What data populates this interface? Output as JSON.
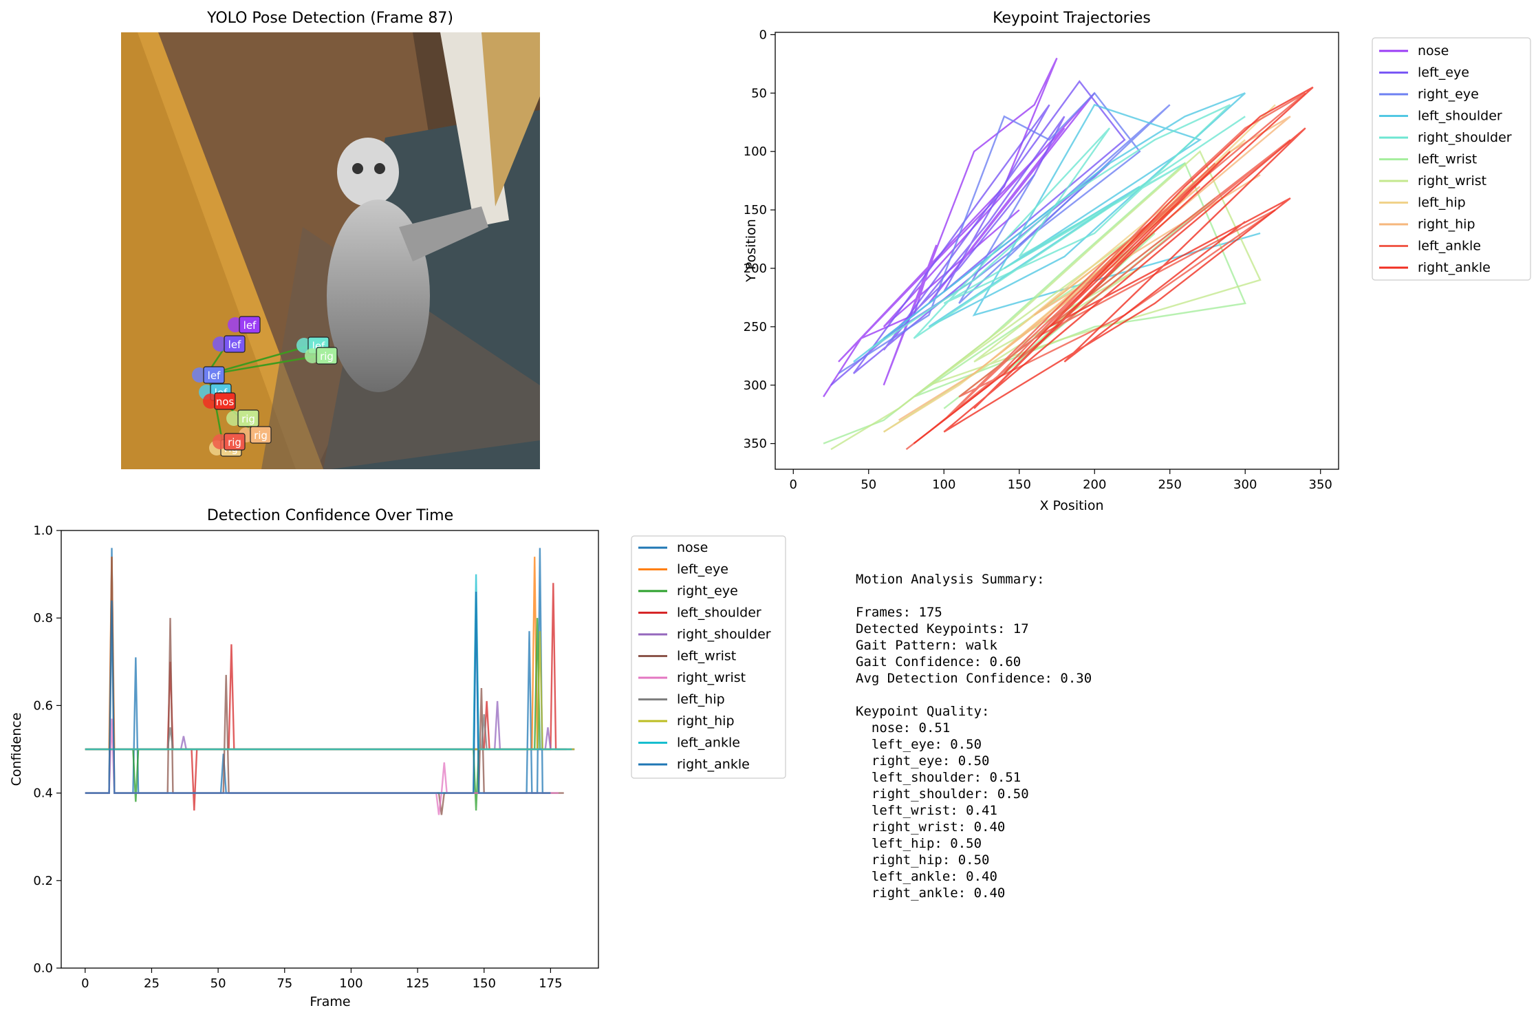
{
  "colors": {
    "keypoints": [
      "#9b3df5",
      "#7a58f5",
      "#6d80f2",
      "#52c8e3",
      "#6ee6d2",
      "#a6ee9e",
      "#c4e88e",
      "#f0d28a",
      "#f6b77c",
      "#f05a4a",
      "#f02f22"
    ],
    "confidence": [
      "#1f77b4",
      "#ff7f0e",
      "#2ca02c",
      "#d62728",
      "#9467bd",
      "#8c564b",
      "#e377c2",
      "#7f7f7f",
      "#bcbd22",
      "#17becf",
      "#1f77b4"
    ],
    "photo_wall": "#c9a23a",
    "photo_floor": "#8a5a35"
  },
  "chart_data": [
    {
      "id": "pose",
      "type": "image",
      "title": "YOLO Pose Detection (Frame 87)",
      "marker_labels": [
        "lef",
        "lef",
        "lef",
        "lef",
        "lef",
        "rig",
        "rig",
        "rig",
        "rig",
        "rig",
        "nos"
      ]
    },
    {
      "id": "trajectories",
      "type": "line",
      "title": "Keypoint Trajectories",
      "xlabel": "X Position",
      "ylabel": "Y Position",
      "xlim": [
        -12,
        362
      ],
      "ylim": [
        372,
        -2
      ],
      "y_inverted": true,
      "xticks": [
        0,
        50,
        100,
        150,
        200,
        250,
        300,
        350
      ],
      "yticks": [
        0,
        50,
        100,
        150,
        200,
        250,
        300,
        350
      ],
      "legend_position": "outside-right",
      "series": [
        {
          "name": "nose",
          "x": [
            20,
            45,
            80,
            95,
            60,
            120,
            160,
            175,
            140,
            30,
            180,
            90,
            200,
            60,
            150
          ],
          "y": [
            310,
            260,
            240,
            180,
            300,
            100,
            60,
            20,
            130,
            280,
            80,
            230,
            50,
            250,
            150
          ]
        },
        {
          "name": "left_eye",
          "x": [
            25,
            70,
            110,
            160,
            180,
            130,
            60,
            190,
            220,
            100,
            170,
            40,
            210,
            150
          ],
          "y": [
            300,
            250,
            200,
            120,
            70,
            160,
            270,
            40,
            90,
            220,
            60,
            290,
            110,
            180
          ]
        },
        {
          "name": "right_eye",
          "x": [
            30,
            90,
            140,
            170,
            200,
            230,
            120,
            60,
            180,
            250,
            110,
            160
          ],
          "y": [
            290,
            240,
            70,
            90,
            50,
            100,
            210,
            260,
            140,
            60,
            230,
            120
          ]
        },
        {
          "name": "left_shoulder",
          "x": [
            40,
            100,
            160,
            210,
            260,
            300,
            180,
            90,
            230,
            140,
            270,
            200,
            120,
            310
          ],
          "y": [
            280,
            220,
            160,
            110,
            70,
            50,
            190,
            250,
            130,
            200,
            90,
            60,
            240,
            170
          ]
        },
        {
          "name": "right_shoulder",
          "x": [
            50,
            120,
            180,
            240,
            290,
            200,
            100,
            260,
            150,
            210,
            80,
            300
          ],
          "y": [
            270,
            210,
            140,
            90,
            60,
            170,
            230,
            110,
            190,
            80,
            260,
            70
          ]
        },
        {
          "name": "left_wrist",
          "x": [
            20,
            60,
            130,
            190,
            260,
            300,
            200,
            80,
            240,
            140,
            280,
            100
          ],
          "y": [
            350,
            330,
            260,
            190,
            110,
            230,
            250,
            310,
            170,
            290,
            140,
            320
          ]
        },
        {
          "name": "right_wrist",
          "x": [
            25,
            70,
            140,
            200,
            270,
            310,
            180,
            90,
            250,
            120,
            230,
            60
          ],
          "y": [
            355,
            320,
            250,
            180,
            100,
            210,
            260,
            300,
            150,
            280,
            200,
            340
          ]
        },
        {
          "name": "left_hip",
          "x": [
            60,
            110,
            170,
            230,
            280,
            320,
            200,
            130,
            260,
            150,
            300
          ],
          "y": [
            340,
            300,
            240,
            170,
            110,
            60,
            210,
            280,
            140,
            250,
            90
          ]
        },
        {
          "name": "right_hip",
          "x": [
            70,
            120,
            180,
            240,
            290,
            330,
            210,
            140,
            270,
            160,
            310
          ],
          "y": [
            330,
            290,
            230,
            160,
            100,
            70,
            200,
            270,
            130,
            240,
            120
          ]
        },
        {
          "name": "left_ankle",
          "x": [
            75,
            130,
            190,
            250,
            300,
            340,
            210,
            100,
            280,
            160,
            320,
            220,
            110,
            330,
            90
          ],
          "y": [
            355,
            300,
            220,
            140,
            80,
            50,
            190,
            330,
            110,
            260,
            150,
            240,
            310,
            90,
            340
          ]
        },
        {
          "name": "right_ankle",
          "x": [
            80,
            140,
            200,
            260,
            310,
            345,
            230,
            120,
            290,
            170,
            330,
            240,
            100,
            340,
            180,
            300
          ],
          "y": [
            350,
            290,
            210,
            130,
            70,
            45,
            180,
            320,
            100,
            250,
            140,
            230,
            340,
            80,
            280,
            160
          ]
        }
      ]
    },
    {
      "id": "confidence",
      "type": "line",
      "title": "Detection Confidence Over Time",
      "xlabel": "Frame",
      "ylabel": "Confidence",
      "xlim": [
        -9,
        193
      ],
      "ylim": [
        0.0,
        1.0
      ],
      "xticks": [
        0,
        25,
        50,
        75,
        100,
        125,
        150,
        175
      ],
      "yticks": [
        "0.0",
        "0.2",
        "0.4",
        "0.6",
        "0.8",
        "1.0"
      ],
      "legend_position": "outside-right",
      "series": [
        {
          "name": "nose",
          "x": [
            0,
            9,
            10,
            11,
            18,
            19,
            20,
            51,
            52,
            53,
            146,
            147,
            148,
            166,
            167,
            168,
            170,
            171,
            172,
            175
          ],
          "y": [
            0.4,
            0.4,
            0.96,
            0.4,
            0.4,
            0.71,
            0.4,
            0.4,
            0.49,
            0.4,
            0.4,
            0.86,
            0.4,
            0.4,
            0.77,
            0.4,
            0.4,
            0.96,
            0.4,
            0.4
          ]
        },
        {
          "name": "left_eye",
          "x": [
            0,
            9,
            10,
            11,
            167,
            168,
            169,
            170,
            171,
            175
          ],
          "y": [
            0.5,
            0.5,
            0.94,
            0.5,
            0.5,
            0.5,
            0.94,
            0.5,
            0.5,
            0.5
          ]
        },
        {
          "name": "right_eye",
          "x": [
            0,
            18,
            19,
            20,
            146,
            147,
            148,
            169,
            170,
            171,
            175
          ],
          "y": [
            0.5,
            0.5,
            0.38,
            0.5,
            0.5,
            0.36,
            0.5,
            0.5,
            0.8,
            0.5,
            0.5
          ]
        },
        {
          "name": "left_shoulder",
          "x": [
            0,
            31,
            32,
            33,
            40,
            41,
            42,
            54,
            55,
            56,
            150,
            151,
            152,
            175,
            176,
            177,
            181
          ],
          "y": [
            0.5,
            0.5,
            0.7,
            0.5,
            0.5,
            0.36,
            0.5,
            0.5,
            0.74,
            0.5,
            0.5,
            0.61,
            0.5,
            0.5,
            0.88,
            0.5,
            0.5
          ]
        },
        {
          "name": "right_shoulder",
          "x": [
            0,
            36,
            37,
            38,
            154,
            155,
            156,
            173,
            174,
            175,
            184
          ],
          "y": [
            0.5,
            0.5,
            0.53,
            0.5,
            0.5,
            0.61,
            0.5,
            0.5,
            0.55,
            0.5,
            0.5
          ]
        },
        {
          "name": "left_wrist",
          "x": [
            0,
            9,
            10,
            11,
            31,
            32,
            33,
            52,
            53,
            54,
            133,
            134,
            135,
            148,
            149,
            150,
            180
          ],
          "y": [
            0.4,
            0.4,
            0.94,
            0.4,
            0.4,
            0.8,
            0.4,
            0.4,
            0.67,
            0.4,
            0.4,
            0.35,
            0.4,
            0.4,
            0.64,
            0.4,
            0.4
          ]
        },
        {
          "name": "right_wrist",
          "x": [
            0,
            9,
            10,
            11,
            132,
            133,
            134,
            135,
            136,
            178
          ],
          "y": [
            0.4,
            0.4,
            0.57,
            0.4,
            0.4,
            0.35,
            0.4,
            0.47,
            0.4,
            0.4
          ]
        },
        {
          "name": "left_hip",
          "x": [
            0,
            31,
            32,
            33,
            149,
            150,
            151,
            184
          ],
          "y": [
            0.5,
            0.5,
            0.55,
            0.5,
            0.5,
            0.58,
            0.5,
            0.5
          ]
        },
        {
          "name": "right_hip",
          "x": [
            0,
            170,
            171,
            172,
            184
          ],
          "y": [
            0.5,
            0.5,
            0.77,
            0.5,
            0.5
          ]
        },
        {
          "name": "left_ankle",
          "x": [
            0,
            146,
            147,
            148,
            183
          ],
          "y": [
            0.5,
            0.5,
            0.9,
            0.5,
            0.5
          ]
        },
        {
          "name": "right_ankle",
          "x": [
            0,
            9,
            10,
            11,
            146,
            147,
            148,
            175
          ],
          "y": [
            0.4,
            0.4,
            0.84,
            0.4,
            0.4,
            0.86,
            0.4,
            0.4
          ]
        }
      ]
    }
  ],
  "summary": {
    "lines": [
      "Motion Analysis Summary:",
      "",
      "Frames: 175",
      "Detected Keypoints: 17",
      "Gait Pattern: walk",
      "Gait Confidence: 0.60",
      "Avg Detection Confidence: 0.30",
      "",
      "Keypoint Quality:",
      "  nose: 0.51",
      "  left_eye: 0.50",
      "  right_eye: 0.50",
      "  left_shoulder: 0.51",
      "  right_shoulder: 0.50",
      "  left_wrist: 0.41",
      "  right_wrist: 0.40",
      "  left_hip: 0.50",
      "  right_hip: 0.50",
      "  left_ankle: 0.40",
      "  right_ankle: 0.40"
    ]
  }
}
